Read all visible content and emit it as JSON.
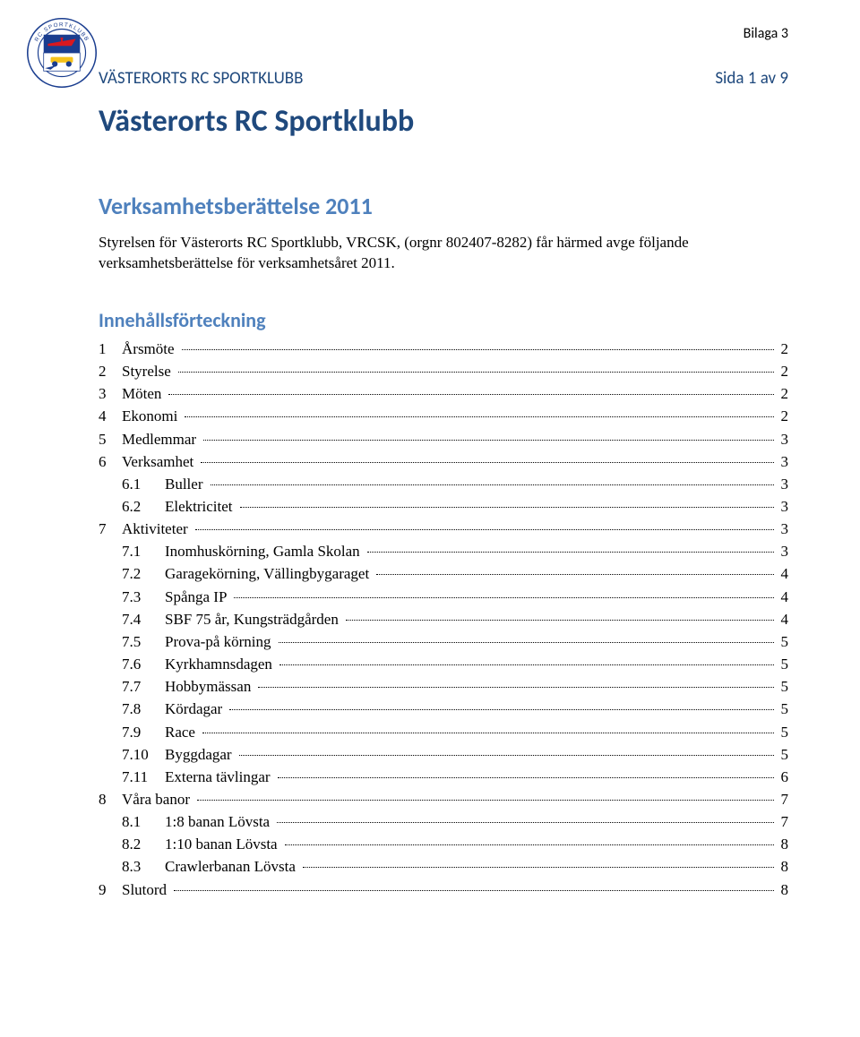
{
  "attachment_label": "Bilaga 3",
  "header": {
    "org_name": "VÄSTERORTS RC SPORTKLUBB",
    "page_indicator": "Sida 1 av 9"
  },
  "title": "Västerorts RC Sportklubb",
  "subtitle": "Verksamhetsberättelse 2011",
  "intro": "Styrelsen för Västerorts RC Sportklubb, VRCSK, (orgnr 802407-8282) får härmed avge följande verksamhetsberättelse för verksamhetsåret 2011.",
  "toc_heading": "Innehållsförteckning",
  "toc": [
    {
      "level": 1,
      "num": "1",
      "label": "Årsmöte",
      "page": "2"
    },
    {
      "level": 1,
      "num": "2",
      "label": "Styrelse",
      "page": "2"
    },
    {
      "level": 1,
      "num": "3",
      "label": "Möten",
      "page": "2"
    },
    {
      "level": 1,
      "num": "4",
      "label": "Ekonomi",
      "page": "2"
    },
    {
      "level": 1,
      "num": "5",
      "label": "Medlemmar",
      "page": "3"
    },
    {
      "level": 1,
      "num": "6",
      "label": "Verksamhet",
      "page": "3"
    },
    {
      "level": 2,
      "num": "6.1",
      "label": "Buller",
      "page": "3"
    },
    {
      "level": 2,
      "num": "6.2",
      "label": "Elektricitet",
      "page": "3"
    },
    {
      "level": 1,
      "num": "7",
      "label": "Aktiviteter",
      "page": "3"
    },
    {
      "level": 2,
      "num": "7.1",
      "label": "Inomhuskörning, Gamla Skolan",
      "page": "3"
    },
    {
      "level": 2,
      "num": "7.2",
      "label": "Garagekörning, Vällingbygaraget",
      "page": "4"
    },
    {
      "level": 2,
      "num": "7.3",
      "label": "Spånga IP",
      "page": "4"
    },
    {
      "level": 2,
      "num": "7.4",
      "label": "SBF 75 år, Kungsträdgården",
      "page": "4"
    },
    {
      "level": 2,
      "num": "7.5",
      "label": "Prova-på körning",
      "page": "5"
    },
    {
      "level": 2,
      "num": "7.6",
      "label": "Kyrkhamnsdagen",
      "page": "5"
    },
    {
      "level": 2,
      "num": "7.7",
      "label": "Hobbymässan",
      "page": "5"
    },
    {
      "level": 2,
      "num": "7.8",
      "label": "Kördagar",
      "page": "5"
    },
    {
      "level": 2,
      "num": "7.9",
      "label": "Race",
      "page": "5"
    },
    {
      "level": 2,
      "num": "7.10",
      "label": "Byggdagar",
      "page": "5"
    },
    {
      "level": 2,
      "num": "7.11",
      "label": "Externa tävlingar",
      "page": "6"
    },
    {
      "level": 1,
      "num": "8",
      "label": "Våra banor",
      "page": "7"
    },
    {
      "level": 2,
      "num": "8.1",
      "label": "1:8 banan Lövsta",
      "page": "7"
    },
    {
      "level": 2,
      "num": "8.2",
      "label": "1:10 banan Lövsta",
      "page": "8"
    },
    {
      "level": 2,
      "num": "8.3",
      "label": "Crawlerbanan Lövsta",
      "page": "8"
    },
    {
      "level": 1,
      "num": "9",
      "label": "Slutord",
      "page": "8"
    }
  ],
  "logo": {
    "outer_text_top": "RC  SPORTKLUBB",
    "outer_text_bottom": "VÄSTERORTS",
    "colors": {
      "ring_outer": "#1a3d8f",
      "ring_inner": "#ffffff",
      "field_blue": "#1a3d8f",
      "field_white": "#ffffff",
      "accent_red": "#d8181f",
      "accent_yellow": "#f6c21b",
      "text": "#1a3d8f"
    }
  },
  "colors": {
    "heading_dark": "#1f497d",
    "heading_light": "#4f81bd",
    "body_text": "#000000",
    "background": "#ffffff"
  },
  "fonts": {
    "heading_family": "Calibri",
    "body_family": "Times New Roman",
    "title_size_pt": 26,
    "subtitle_size_pt": 20,
    "body_size_pt": 12
  }
}
